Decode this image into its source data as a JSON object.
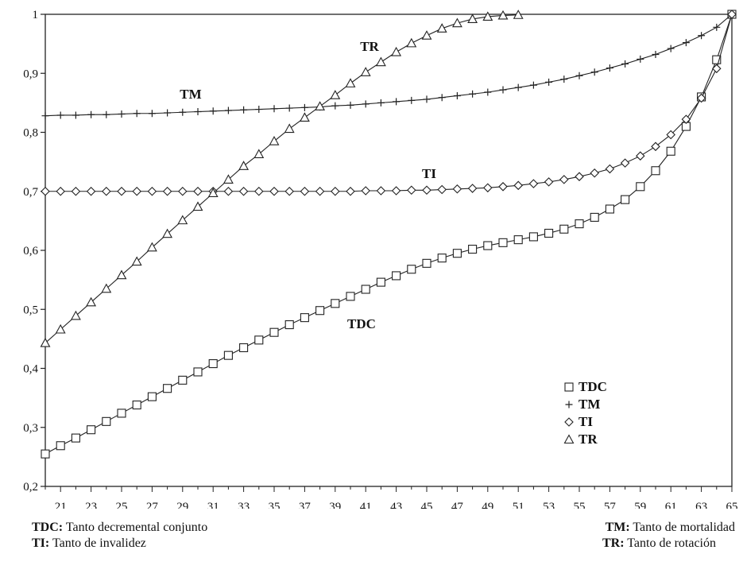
{
  "chart_data": {
    "type": "line",
    "x": [
      20,
      21,
      22,
      23,
      24,
      25,
      26,
      27,
      28,
      29,
      30,
      31,
      32,
      33,
      34,
      35,
      36,
      37,
      38,
      39,
      40,
      41,
      42,
      43,
      44,
      45,
      46,
      47,
      48,
      49,
      50,
      51,
      52,
      53,
      54,
      55,
      56,
      57,
      58,
      59,
      60,
      61,
      62,
      63,
      64,
      65
    ],
    "x_tick_labels": [
      "21",
      "23",
      "25",
      "27",
      "29",
      "31",
      "33",
      "35",
      "37",
      "39",
      "41",
      "43",
      "45",
      "47",
      "49",
      "51",
      "53",
      "55",
      "57",
      "59",
      "61",
      "63",
      "65"
    ],
    "y_tick_labels": [
      "0,2",
      "0,3",
      "0,4",
      "0,5",
      "0,6",
      "0,7",
      "0,8",
      "0,9",
      "1"
    ],
    "xlim": [
      20,
      65
    ],
    "ylim": [
      0.2,
      1.0
    ],
    "grid": false,
    "legend_position": "lower-right",
    "series": [
      {
        "name": "TDC",
        "marker": "square",
        "values": [
          0.255,
          0.269,
          0.282,
          0.296,
          0.31,
          0.324,
          0.338,
          0.352,
          0.366,
          0.38,
          0.394,
          0.408,
          0.422,
          0.435,
          0.448,
          0.461,
          0.474,
          0.486,
          0.498,
          0.51,
          0.522,
          0.534,
          0.546,
          0.557,
          0.568,
          0.578,
          0.587,
          0.595,
          0.602,
          0.608,
          0.613,
          0.618,
          0.623,
          0.629,
          0.636,
          0.645,
          0.656,
          0.67,
          0.686,
          0.708,
          0.735,
          0.768,
          0.81,
          0.86,
          0.923,
          1.0
        ]
      },
      {
        "name": "TM",
        "marker": "plus",
        "values": [
          0.828,
          0.829,
          0.829,
          0.83,
          0.83,
          0.831,
          0.832,
          0.832,
          0.833,
          0.834,
          0.835,
          0.836,
          0.837,
          0.838,
          0.839,
          0.84,
          0.841,
          0.842,
          0.843,
          0.845,
          0.846,
          0.848,
          0.85,
          0.852,
          0.854,
          0.856,
          0.859,
          0.862,
          0.865,
          0.868,
          0.872,
          0.876,
          0.88,
          0.885,
          0.89,
          0.896,
          0.902,
          0.909,
          0.916,
          0.924,
          0.932,
          0.942,
          0.952,
          0.964,
          0.978,
          1.0
        ]
      },
      {
        "name": "TI",
        "marker": "diamond",
        "values": [
          0.7,
          0.7,
          0.7,
          0.7,
          0.7,
          0.7,
          0.7,
          0.7,
          0.7,
          0.7,
          0.7,
          0.7,
          0.7,
          0.7,
          0.7,
          0.7,
          0.7,
          0.7,
          0.7,
          0.7,
          0.7,
          0.701,
          0.701,
          0.701,
          0.702,
          0.702,
          0.703,
          0.704,
          0.705,
          0.706,
          0.708,
          0.71,
          0.713,
          0.716,
          0.72,
          0.725,
          0.731,
          0.738,
          0.748,
          0.76,
          0.776,
          0.796,
          0.822,
          0.858,
          0.908,
          1.0
        ]
      },
      {
        "name": "TR",
        "marker": "triangle",
        "values": [
          0.443,
          0.466,
          0.489,
          0.512,
          0.535,
          0.558,
          0.581,
          0.605,
          0.628,
          0.651,
          0.674,
          0.697,
          0.72,
          0.743,
          0.763,
          0.785,
          0.806,
          0.825,
          0.844,
          0.863,
          0.883,
          0.902,
          0.919,
          0.936,
          0.951,
          0.964,
          0.976,
          0.985,
          0.992,
          0.996,
          0.998,
          0.999,
          null,
          null,
          null,
          null,
          null,
          null,
          null,
          null,
          null,
          null,
          null,
          null,
          null,
          null
        ]
      }
    ],
    "series_labels": [
      "TR",
      "TM",
      "TI",
      "TDC"
    ],
    "legend": [
      "TDC",
      "TM",
      "TI",
      "TR"
    ]
  },
  "footer": {
    "tdc_abbr": "TDC:",
    "tdc_text": " Tanto decremental conjunto",
    "ti_abbr": "TI:",
    "ti_text": " Tanto de invalidez",
    "tm_abbr": "TM:",
    "tm_text": " Tanto de mortalidad",
    "tr_abbr": "TR:",
    "tr_text": " Tanto de rotación"
  }
}
